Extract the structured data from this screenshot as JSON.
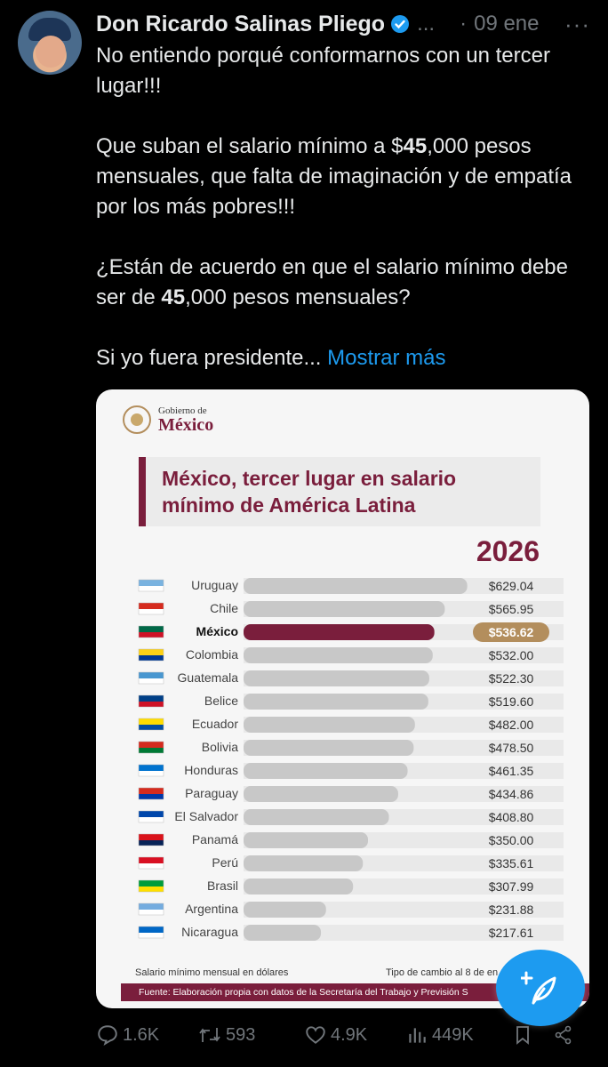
{
  "tweet": {
    "author_name": "Don Ricardo Salinas Pliego",
    "handle": "...",
    "separator": "·",
    "date": "09 ene",
    "more": "···",
    "p1": "No entiendo porqué conformarnos con un tercer lugar!!!",
    "p2_a": "Que suban el salario mínimo a $",
    "p2_b": "45",
    "p2_c": ",000 pesos mensuales, que falta de imaginación y de empatía por los más pobres!!!",
    "p3_a": "¿Están de acuerdo en que el salario mínimo debe ser de ",
    "p3_b": "45",
    "p3_c": ",000 pesos mensuales?",
    "p4": "Si yo fuera presidente...",
    "show_more": "Mostrar más"
  },
  "card": {
    "gob_small": "Gobierno de",
    "gob_big": "México",
    "title_line1": "México, tercer lugar en salario",
    "title_line2": "mínimo de América Latina",
    "year": "2026",
    "footer_left": "Salario mínimo mensual en dólares",
    "footer_right": "Tipo de cambio al 8 de en",
    "source": "Fuente: Elaboración propia con datos de la Secretaría del Trabajo y Previsión S"
  },
  "chart_data": {
    "type": "bar",
    "orientation": "horizontal",
    "title": "México, tercer lugar en salario mínimo de América Latina",
    "subtitle": "2026",
    "unit_label": "Salario mínimo mensual en dólares",
    "categories": [
      "Uruguay",
      "Chile",
      "México",
      "Colombia",
      "Guatemala",
      "Belice",
      "Ecuador",
      "Bolivia",
      "Honduras",
      "Paraguay",
      "El Salvador",
      "Panamá",
      "Perú",
      "Brasil",
      "Argentina",
      "Nicaragua"
    ],
    "values": [
      629.04,
      565.95,
      536.62,
      532.0,
      522.3,
      519.6,
      482.0,
      478.5,
      461.35,
      434.86,
      408.8,
      350.0,
      335.61,
      307.99,
      231.88,
      217.61
    ],
    "value_labels": [
      "$629.04",
      "$565.95",
      "$536.62",
      "$532.00",
      "$522.30",
      "$519.60",
      "$482.00",
      "$478.50",
      "$461.35",
      "$434.86",
      "$408.80",
      "$350.00",
      "$335.61",
      "$307.99",
      "$231.88",
      "$217.61"
    ],
    "highlight": "México",
    "colors": {
      "bar": "#c8c8c8",
      "highlight_bar": "#7a1e3c",
      "highlight_label": "#b38e5d",
      "track": "#e9e9e9"
    },
    "flags": [
      [
        "#7ab3e0",
        "#ffffff"
      ],
      [
        "#d52b1e",
        "#ffffff"
      ],
      [
        "#006847",
        "#ce1126"
      ],
      [
        "#fcd116",
        "#003893"
      ],
      [
        "#4997d0",
        "#ffffff"
      ],
      [
        "#003f87",
        "#ce1126"
      ],
      [
        "#ffdd00",
        "#034ea2"
      ],
      [
        "#d52b1e",
        "#007934"
      ],
      [
        "#0073cf",
        "#ffffff"
      ],
      [
        "#d52b1e",
        "#0038a8"
      ],
      [
        "#0047ab",
        "#ffffff"
      ],
      [
        "#da121a",
        "#072357"
      ],
      [
        "#d91023",
        "#ffffff"
      ],
      [
        "#009c3b",
        "#ffdf00"
      ],
      [
        "#74acdf",
        "#ffffff"
      ],
      [
        "#0067c6",
        "#ffffff"
      ]
    ]
  },
  "actions": {
    "replies": "1.6K",
    "retweets": "593",
    "likes": "4.9K",
    "views": "449K"
  }
}
